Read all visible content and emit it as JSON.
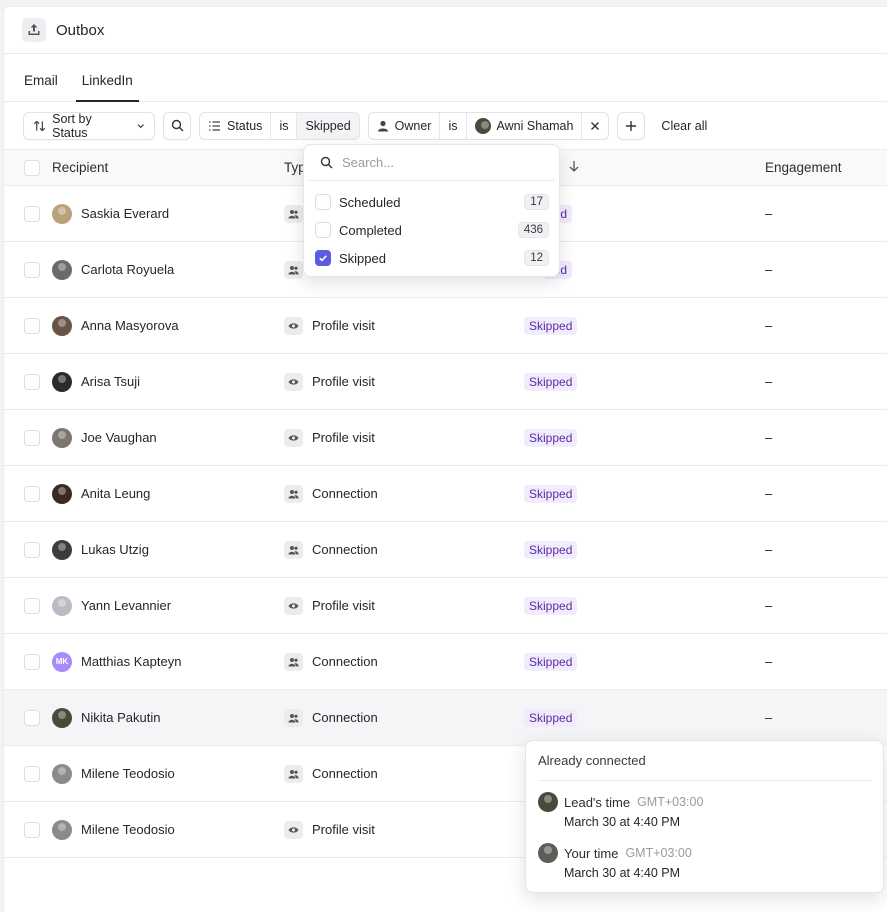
{
  "header": {
    "title": "Outbox"
  },
  "tabs": [
    {
      "label": "Email"
    },
    {
      "label": "LinkedIn"
    }
  ],
  "filters": {
    "sort_label": "Sort by Status",
    "status": {
      "field": "Status",
      "op": "is",
      "value": "Skipped"
    },
    "owner": {
      "field": "Owner",
      "op": "is",
      "value": "Awni Shamah"
    },
    "clear_all": "Clear all"
  },
  "table": {
    "columns": {
      "recipient": "Recipient",
      "type": "Typ",
      "engagement": "Engagement"
    },
    "rows": [
      {
        "name": "Saskia Everard",
        "type": "",
        "status": "ped",
        "engagement": "–",
        "avatar_color": "#b9a27a"
      },
      {
        "name": "Carlota Royuela",
        "type": "",
        "status": "ped",
        "engagement": "–",
        "avatar_color": "#6c6a68"
      },
      {
        "name": "Anna Masyorova",
        "type": "Profile visit",
        "status": "Skipped",
        "engagement": "–",
        "avatar_color": "#6a5448"
      },
      {
        "name": "Arisa Tsuji",
        "type": "Profile visit",
        "status": "Skipped",
        "engagement": "–",
        "avatar_color": "#2e2a28"
      },
      {
        "name": "Joe Vaughan",
        "type": "Profile visit",
        "status": "Skipped",
        "engagement": "–",
        "avatar_color": "#7b7670"
      },
      {
        "name": "Anita Leung",
        "type": "Connection",
        "status": "Skipped",
        "engagement": "–",
        "avatar_color": "#3b2a22"
      },
      {
        "name": "Lukas Utzig",
        "type": "Connection",
        "status": "Skipped",
        "engagement": "–",
        "avatar_color": "#3c3c3e"
      },
      {
        "name": "Yann Levannier",
        "type": "Profile visit",
        "status": "Skipped",
        "engagement": "–",
        "avatar_color": "#b9bcc2"
      },
      {
        "name": "Matthias Kapteyn",
        "type": "Connection",
        "status": "Skipped",
        "engagement": "–",
        "avatar_color": "#a78bfa",
        "initials": "MK"
      },
      {
        "name": "Nikita Pakutin",
        "type": "Connection",
        "status": "Skipped",
        "engagement": "–",
        "avatar_color": "#4a4a3c"
      },
      {
        "name": "Milene Teodosio",
        "type": "Connection",
        "status": "",
        "engagement": "",
        "avatar_color": "#8a8a8c"
      },
      {
        "name": "Milene Teodosio",
        "type": "Profile visit",
        "status": "",
        "engagement": "",
        "avatar_color": "#8a8a8c"
      }
    ]
  },
  "status_dropdown": {
    "search_placeholder": "Search...",
    "options": [
      {
        "label": "Scheduled",
        "count": "17",
        "checked": false
      },
      {
        "label": "Completed",
        "count": "436",
        "checked": false
      },
      {
        "label": "Skipped",
        "count": "12",
        "checked": true
      }
    ]
  },
  "tooltip": {
    "title": "Already connected",
    "lead_label": "Lead's time",
    "lead_tz": "GMT+03:00",
    "lead_time": "March 30 at 4:40 PM",
    "your_label": "Your time",
    "your_tz": "GMT+03:00",
    "your_time": "March 30 at 4:40 PM"
  },
  "colors": {
    "accent": "#5b5ce2",
    "badge_bg": "#f1ecfb",
    "badge_text": "#5b2aa6"
  }
}
